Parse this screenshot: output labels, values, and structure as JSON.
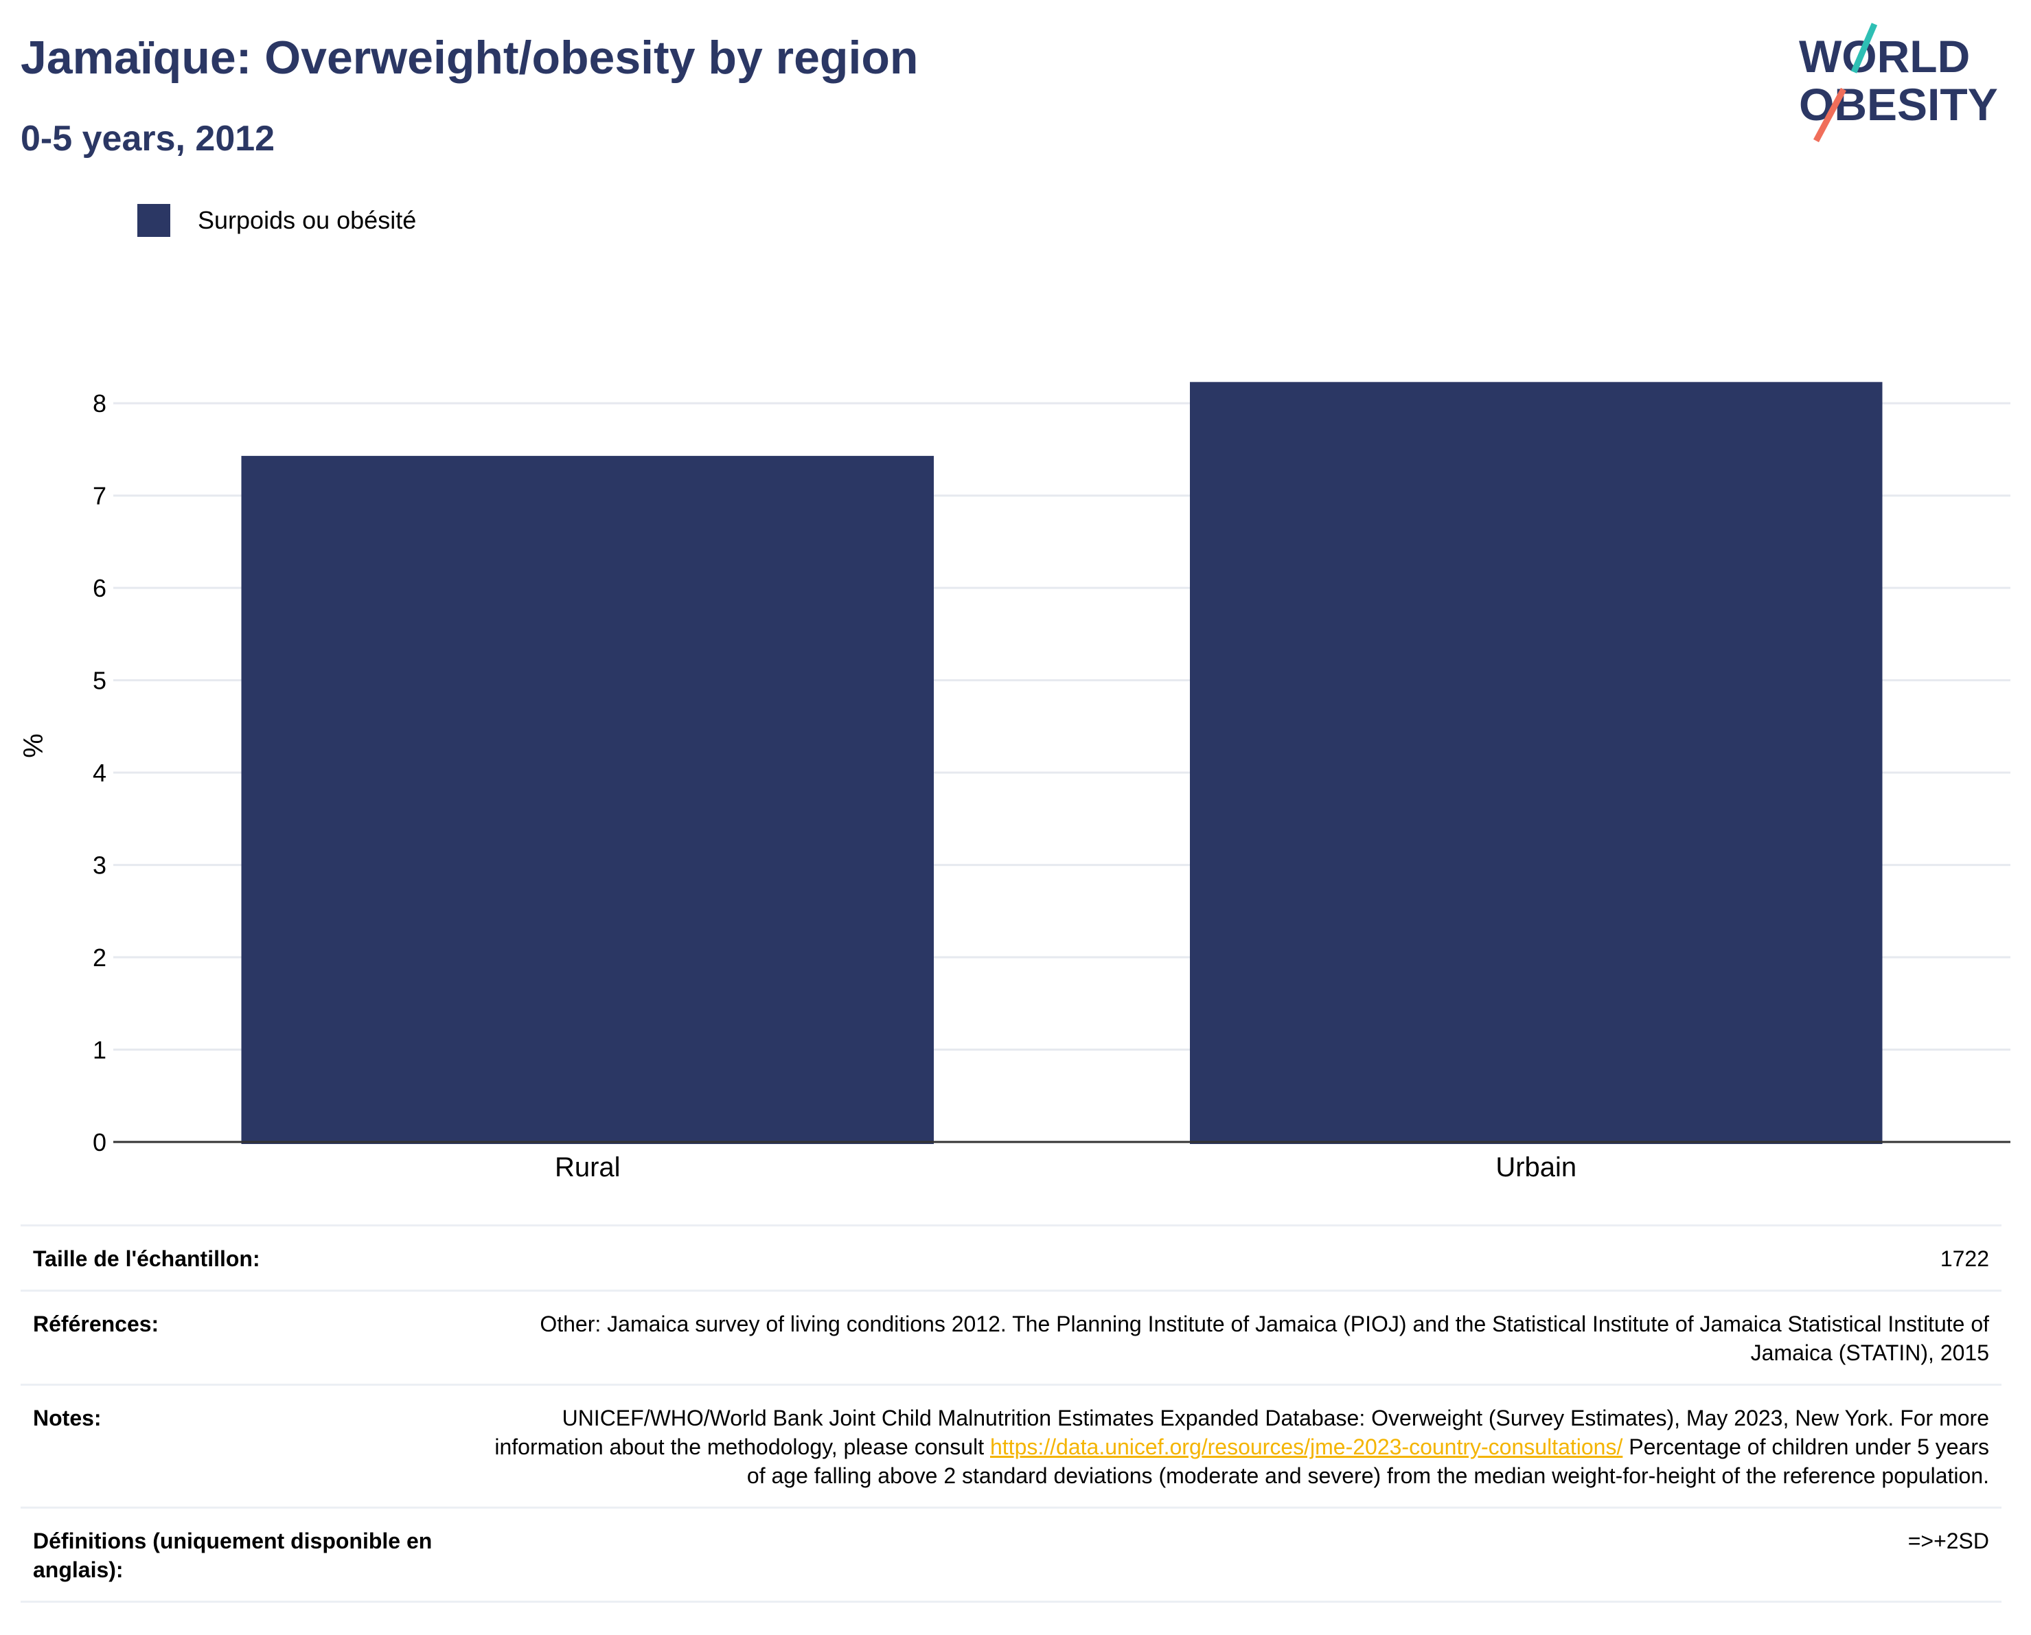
{
  "header": {
    "title": "Jamaïque: Overweight/obesity by region",
    "subtitle": "0-5 years, 2012"
  },
  "logo": {
    "line1": "WORLD",
    "line2": "OBESITY"
  },
  "colors": {
    "bar": "#2b3764",
    "title": "#2b3764",
    "link": "#f4b400",
    "logo_teal": "#2ebfb4",
    "logo_coral": "#f06e5a"
  },
  "chart_data": {
    "type": "bar",
    "categories": [
      "Rural",
      "Urbain"
    ],
    "series": [
      {
        "name": "Surpoids ou obésité",
        "values": [
          7.43,
          8.23
        ]
      }
    ],
    "xlabel": "",
    "ylabel": "%",
    "ylim": [
      0,
      8.5
    ],
    "yticks": [
      0,
      1,
      2,
      3,
      4,
      5,
      6,
      7,
      8
    ],
    "grid": true,
    "legend": "top-left"
  },
  "legend": {
    "label": "Surpoids ou obésité"
  },
  "info": {
    "sample_label": "Taille de l'échantillon:",
    "sample_value": "1722",
    "references_label": "Références:",
    "references_value": "Other: Jamaica survey of living conditions 2012. The Planning Institute of Jamaica (PIOJ) and the Statistical Institute of Jamaica Statistical Institute of Jamaica (STATIN), 2015",
    "notes_label": "Notes:",
    "notes_value_1": "UNICEF/WHO/World Bank Joint Child Malnutrition Estimates Expanded Database: Overweight (Survey Estimates), May 2023, New York. For more information about the methodology, please consult ",
    "notes_link": "https://data.unicef.org/resources/jme-2023-country-consultations/",
    "notes_value_2": " Percentage of children under 5 years of age falling above 2 standard deviations (moderate and severe) from the median weight-for-height of the reference population.",
    "definitions_label": "Définitions (uniquement disponible en anglais):",
    "definitions_value": "=>+2SD"
  }
}
